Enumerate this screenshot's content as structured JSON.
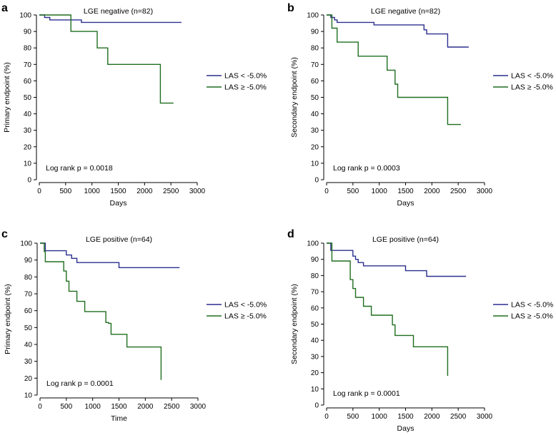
{
  "figure": {
    "colors": {
      "blue": "#2b2f8f",
      "green": "#1f6e1f"
    },
    "legend_labels": [
      "LAS < -5.0%",
      "LAS ≥ -5.0%"
    ]
  },
  "chart_data": [
    {
      "type": "line",
      "panel": "a",
      "title": "LGE negative (n=82)",
      "xlabel": "Days",
      "ylabel": "Primary endpoint (%)",
      "xlim": [
        0,
        3000
      ],
      "ylim": [
        0,
        100
      ],
      "xticks": [
        0,
        500,
        1000,
        1500,
        2000,
        2500,
        3000
      ],
      "yticks": [
        0,
        10,
        20,
        30,
        40,
        50,
        60,
        70,
        80,
        90,
        100
      ],
      "annotation": "Log rank p = 0.0018",
      "series": [
        {
          "name": "LAS < -5.0%",
          "color": "#2b2f8f",
          "x": [
            0,
            100,
            100,
            200,
            200,
            800,
            800,
            2700
          ],
          "y": [
            100,
            100,
            98.5,
            98.5,
            97,
            97,
            95.5,
            95.5
          ]
        },
        {
          "name": "LAS ≥ -5.0%",
          "color": "#1f6e1f",
          "x": [
            0,
            600,
            600,
            1100,
            1100,
            1300,
            1300,
            2300,
            2300,
            2550
          ],
          "y": [
            100,
            100,
            90,
            90,
            80,
            80,
            70,
            70,
            46.5,
            46.5
          ]
        }
      ]
    },
    {
      "type": "line",
      "panel": "b",
      "title": "LGE negative (n=82)",
      "xlabel": "Days",
      "ylabel": "Secondary endpoint (%)",
      "xlim": [
        0,
        3000
      ],
      "ylim": [
        0,
        100
      ],
      "xticks": [
        0,
        500,
        1000,
        1500,
        2000,
        2500,
        3000
      ],
      "yticks": [
        0,
        10,
        20,
        30,
        40,
        50,
        60,
        70,
        80,
        90,
        100
      ],
      "annotation": "Log rank p = 0.0003",
      "series": [
        {
          "name": "LAS < -5.0%",
          "color": "#2b2f8f",
          "x": [
            0,
            80,
            80,
            150,
            150,
            200,
            200,
            900,
            900,
            1850,
            1850,
            1900,
            1900,
            2300,
            2300,
            2700
          ],
          "y": [
            100,
            100,
            98.5,
            98.5,
            97,
            97,
            95.5,
            95.5,
            94,
            94,
            91,
            91,
            88.5,
            88.5,
            80.5,
            80.5
          ]
        },
        {
          "name": "LAS ≥ -5.0%",
          "color": "#1f6e1f",
          "x": [
            0,
            100,
            100,
            200,
            200,
            250,
            250,
            600,
            600,
            1150,
            1150,
            1300,
            1300,
            1350,
            1350,
            2300,
            2300,
            2550
          ],
          "y": [
            100,
            100,
            92,
            92,
            83.5,
            83.5,
            83.5,
            83.5,
            75,
            75,
            66.5,
            66.5,
            58,
            58,
            50,
            50,
            33.5,
            33.5
          ]
        }
      ]
    },
    {
      "type": "line",
      "panel": "c",
      "title": "LGE positive (n=64)",
      "xlabel": "Time",
      "ylabel": "Primary endpoint (%)",
      "xlim": [
        0,
        3000
      ],
      "ylim": [
        10,
        100
      ],
      "xticks": [
        0,
        500,
        1000,
        1500,
        2000,
        2500,
        3000
      ],
      "yticks": [
        10,
        20,
        30,
        40,
        50,
        60,
        70,
        80,
        90,
        100
      ],
      "annotation": "Log rank p = 0.0001",
      "series": [
        {
          "name": "LAS < -5.0%",
          "color": "#2b2f8f",
          "x": [
            0,
            100,
            100,
            500,
            500,
            600,
            600,
            700,
            700,
            1500,
            1500,
            2650
          ],
          "y": [
            100,
            100,
            95.5,
            95.5,
            93,
            93,
            91,
            91,
            88.5,
            88.5,
            85.5,
            85.5
          ]
        },
        {
          "name": "LAS ≥ -5.0%",
          "color": "#1f6e1f",
          "x": [
            0,
            80,
            80,
            100,
            100,
            450,
            450,
            500,
            500,
            550,
            550,
            700,
            700,
            850,
            850,
            1250,
            1250,
            1300,
            1300,
            1350,
            1350,
            1650,
            1650,
            2300,
            2300
          ],
          "y": [
            100,
            100,
            95,
            95,
            89,
            89,
            83.5,
            83.5,
            77.5,
            77.5,
            71.5,
            71.5,
            65.5,
            65.5,
            59.5,
            59.5,
            53,
            53,
            52.5,
            52.5,
            46,
            46,
            38.5,
            38.5,
            19
          ]
        }
      ]
    },
    {
      "type": "line",
      "panel": "d",
      "title": "LGE positive (n=64)",
      "xlabel": "Days",
      "ylabel": "Secondary endpoint (%)",
      "xlim": [
        0,
        3000
      ],
      "ylim": [
        0,
        100
      ],
      "xticks": [
        0,
        500,
        1000,
        1500,
        2000,
        2500,
        3000
      ],
      "yticks": [
        0,
        10,
        20,
        30,
        40,
        50,
        60,
        70,
        80,
        90,
        100
      ],
      "annotation": "Log rank p = 0.0001",
      "series": [
        {
          "name": "LAS < -5.0%",
          "color": "#2b2f8f",
          "x": [
            0,
            80,
            80,
            500,
            500,
            550,
            550,
            600,
            600,
            700,
            700,
            1500,
            1500,
            1900,
            1900,
            2650
          ],
          "y": [
            100,
            100,
            95.5,
            95.5,
            92,
            92,
            90,
            90,
            88,
            88,
            86,
            86,
            83,
            83,
            79.5,
            79.5
          ]
        },
        {
          "name": "LAS ≥ -5.0%",
          "color": "#1f6e1f",
          "x": [
            0,
            100,
            100,
            450,
            450,
            500,
            500,
            550,
            550,
            700,
            700,
            850,
            850,
            1250,
            1250,
            1300,
            1300,
            1350,
            1350,
            1650,
            1650,
            2300,
            2300
          ],
          "y": [
            100,
            100,
            89,
            89,
            77.5,
            77.5,
            72,
            72,
            66.5,
            66.5,
            61,
            61,
            55.5,
            55.5,
            49.5,
            49.5,
            43,
            43,
            43,
            43,
            36,
            36,
            18
          ]
        }
      ]
    }
  ]
}
